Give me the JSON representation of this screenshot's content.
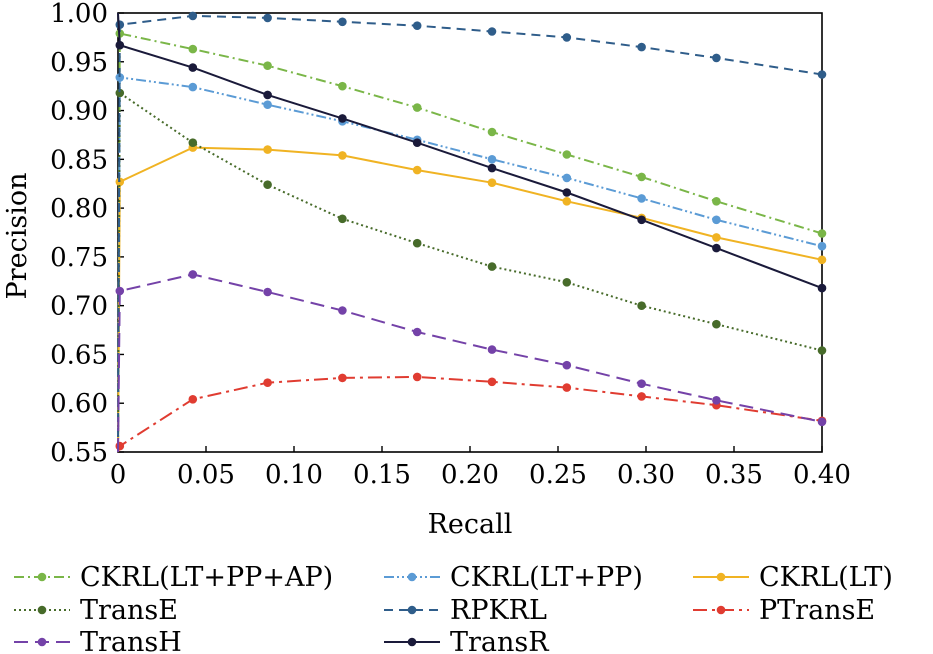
{
  "chart_data": {
    "type": "line",
    "title": "",
    "xlabel": "Recall",
    "ylabel": "Precision",
    "xlim": [
      0,
      0.4
    ],
    "ylim": [
      0.55,
      1.0
    ],
    "x_ticks": [
      "0",
      "0.05",
      "0.10",
      "0.15",
      "0.20",
      "0.25",
      "0.30",
      "0.35",
      "0.40"
    ],
    "y_ticks": [
      "0.55",
      "0.60",
      "0.65",
      "0.70",
      "0.75",
      "0.80",
      "0.85",
      "0.90",
      "0.95",
      "1.00"
    ],
    "grid": false,
    "legend_position": "bottom",
    "series": [
      {
        "name": "CKRL(LT+PP+AP)",
        "color": "#7ab648",
        "dash": "dash-dot",
        "x": [
          0,
          0.001,
          0.0425,
          0.085,
          0.1275,
          0.17,
          0.2125,
          0.255,
          0.2975,
          0.34,
          0.4
        ],
        "y": [
          0.55,
          0.979,
          0.963,
          0.946,
          0.925,
          0.903,
          0.878,
          0.855,
          0.832,
          0.807,
          0.774
        ]
      },
      {
        "name": "CKRL(LT+PP)",
        "color": "#5b9bd5",
        "dash": "dash-dot-dot",
        "x": [
          0,
          0.001,
          0.0425,
          0.085,
          0.1275,
          0.17,
          0.2125,
          0.255,
          0.2975,
          0.34,
          0.4
        ],
        "y": [
          0.55,
          0.934,
          0.924,
          0.906,
          0.889,
          0.87,
          0.85,
          0.831,
          0.81,
          0.788,
          0.761
        ]
      },
      {
        "name": "CKRL(LT)",
        "color": "#f0b323",
        "dash": "solid",
        "x": [
          0,
          0.001,
          0.0425,
          0.085,
          0.1275,
          0.17,
          0.2125,
          0.255,
          0.2975,
          0.34,
          0.4
        ],
        "y": [
          0.55,
          0.827,
          0.862,
          0.86,
          0.854,
          0.839,
          0.826,
          0.807,
          0.79,
          0.77,
          0.747
        ]
      },
      {
        "name": "TransE",
        "color": "#476b2a",
        "dash": "dotted",
        "x": [
          0,
          0.001,
          0.0425,
          0.085,
          0.1275,
          0.17,
          0.2125,
          0.255,
          0.2975,
          0.34,
          0.4
        ],
        "y": [
          0.55,
          0.918,
          0.867,
          0.824,
          0.789,
          0.764,
          0.74,
          0.724,
          0.7,
          0.681,
          0.654
        ]
      },
      {
        "name": "RPKRL",
        "color": "#2f5d8a",
        "dash": "dashed",
        "x": [
          0,
          0.001,
          0.0425,
          0.085,
          0.1275,
          0.17,
          0.2125,
          0.255,
          0.2975,
          0.34,
          0.4
        ],
        "y": [
          0.55,
          0.988,
          0.997,
          0.995,
          0.991,
          0.987,
          0.981,
          0.975,
          0.965,
          0.954,
          0.937
        ]
      },
      {
        "name": "PTransE",
        "color": "#e03c31",
        "dash": "long-dash-dot",
        "x": [
          0,
          0.001,
          0.0425,
          0.085,
          0.1275,
          0.17,
          0.2125,
          0.255,
          0.2975,
          0.34,
          0.4
        ],
        "y": [
          0.55,
          0.556,
          0.604,
          0.621,
          0.626,
          0.627,
          0.622,
          0.616,
          0.607,
          0.598,
          0.582
        ]
      },
      {
        "name": "TransH",
        "color": "#7442a8",
        "dash": "long-dash",
        "x": [
          0,
          0.001,
          0.0425,
          0.085,
          0.1275,
          0.17,
          0.2125,
          0.255,
          0.2975,
          0.34,
          0.4
        ],
        "y": [
          0.55,
          0.715,
          0.732,
          0.714,
          0.695,
          0.673,
          0.655,
          0.639,
          0.62,
          0.603,
          0.581
        ]
      },
      {
        "name": "TransR",
        "color": "#1a1a3a",
        "dash": "solid",
        "x": [
          0,
          0.001,
          0.0425,
          0.085,
          0.1275,
          0.17,
          0.2125,
          0.255,
          0.2975,
          0.34,
          0.4
        ],
        "y": [
          1.0,
          0.967,
          0.944,
          0.916,
          0.892,
          0.867,
          0.841,
          0.816,
          0.788,
          0.759,
          0.718
        ]
      }
    ]
  }
}
